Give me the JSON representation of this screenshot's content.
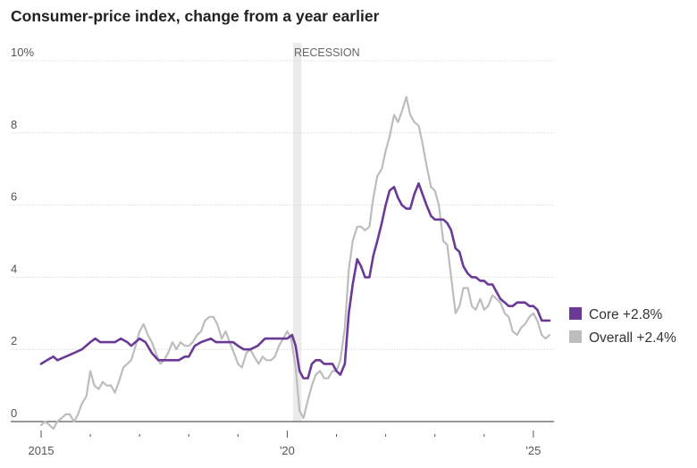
{
  "chart_data": {
    "type": "line",
    "title": "Consumer-price index, change from a year earlier",
    "xlabel": "",
    "ylabel": "",
    "xlim": [
      2015,
      2025.42
    ],
    "ylim": [
      0,
      10
    ],
    "y_ticks": [
      {
        "value": 10,
        "label": "10%"
      },
      {
        "value": 8,
        "label": "8"
      },
      {
        "value": 6,
        "label": "6"
      },
      {
        "value": 4,
        "label": "4"
      },
      {
        "value": 2,
        "label": "2"
      },
      {
        "value": 0,
        "label": "0"
      }
    ],
    "x_tick_labels": [
      {
        "value": 2015,
        "label": "2015"
      },
      {
        "value": 2020,
        "label": "'20"
      },
      {
        "value": 2025,
        "label": "'25"
      }
    ],
    "x_minor_ticks": [
      2016,
      2017,
      2018,
      2019,
      2021,
      2022,
      2023,
      2024
    ],
    "grid": true,
    "legend_position": "right",
    "annotations": [
      {
        "label": "RECESSION",
        "x_start": 2020.12,
        "x_end": 2020.29
      }
    ],
    "series": [
      {
        "name": "Core",
        "legend_label": "Core +2.8%",
        "color": "#6b3a96",
        "points": [
          [
            2015.0,
            1.6
          ],
          [
            2015.12,
            1.7
          ],
          [
            2015.25,
            1.8
          ],
          [
            2015.33,
            1.7
          ],
          [
            2015.5,
            1.8
          ],
          [
            2015.67,
            1.9
          ],
          [
            2015.83,
            2.0
          ],
          [
            2016.0,
            2.2
          ],
          [
            2016.1,
            2.3
          ],
          [
            2016.2,
            2.2
          ],
          [
            2016.33,
            2.2
          ],
          [
            2016.5,
            2.2
          ],
          [
            2016.62,
            2.3
          ],
          [
            2016.75,
            2.2
          ],
          [
            2016.83,
            2.1
          ],
          [
            2017.0,
            2.3
          ],
          [
            2017.12,
            2.2
          ],
          [
            2017.25,
            1.9
          ],
          [
            2017.38,
            1.7
          ],
          [
            2017.5,
            1.7
          ],
          [
            2017.67,
            1.7
          ],
          [
            2017.8,
            1.7
          ],
          [
            2017.92,
            1.8
          ],
          [
            2018.0,
            1.8
          ],
          [
            2018.12,
            2.1
          ],
          [
            2018.25,
            2.2
          ],
          [
            2018.45,
            2.3
          ],
          [
            2018.55,
            2.2
          ],
          [
            2018.75,
            2.2
          ],
          [
            2018.9,
            2.2
          ],
          [
            2019.0,
            2.1
          ],
          [
            2019.12,
            2.0
          ],
          [
            2019.25,
            2.0
          ],
          [
            2019.4,
            2.1
          ],
          [
            2019.55,
            2.3
          ],
          [
            2019.67,
            2.3
          ],
          [
            2019.8,
            2.3
          ],
          [
            2019.92,
            2.3
          ],
          [
            2020.0,
            2.3
          ],
          [
            2020.1,
            2.4
          ],
          [
            2020.17,
            2.1
          ],
          [
            2020.25,
            1.4
          ],
          [
            2020.33,
            1.2
          ],
          [
            2020.42,
            1.2
          ],
          [
            2020.5,
            1.6
          ],
          [
            2020.58,
            1.7
          ],
          [
            2020.67,
            1.7
          ],
          [
            2020.75,
            1.6
          ],
          [
            2020.85,
            1.6
          ],
          [
            2020.92,
            1.6
          ],
          [
            2021.0,
            1.4
          ],
          [
            2021.08,
            1.3
          ],
          [
            2021.17,
            1.6
          ],
          [
            2021.25,
            3.0
          ],
          [
            2021.33,
            3.8
          ],
          [
            2021.42,
            4.5
          ],
          [
            2021.5,
            4.3
          ],
          [
            2021.58,
            4.0
          ],
          [
            2021.67,
            4.0
          ],
          [
            2021.75,
            4.6
          ],
          [
            2021.83,
            5.0
          ],
          [
            2021.92,
            5.5
          ],
          [
            2022.0,
            6.0
          ],
          [
            2022.08,
            6.4
          ],
          [
            2022.17,
            6.5
          ],
          [
            2022.25,
            6.2
          ],
          [
            2022.33,
            6.0
          ],
          [
            2022.42,
            5.9
          ],
          [
            2022.5,
            5.9
          ],
          [
            2022.58,
            6.3
          ],
          [
            2022.67,
            6.6
          ],
          [
            2022.75,
            6.3
          ],
          [
            2022.83,
            6.0
          ],
          [
            2022.92,
            5.7
          ],
          [
            2023.0,
            5.6
          ],
          [
            2023.08,
            5.6
          ],
          [
            2023.17,
            5.6
          ],
          [
            2023.25,
            5.5
          ],
          [
            2023.33,
            5.3
          ],
          [
            2023.42,
            4.8
          ],
          [
            2023.5,
            4.7
          ],
          [
            2023.58,
            4.3
          ],
          [
            2023.67,
            4.1
          ],
          [
            2023.75,
            4.0
          ],
          [
            2023.83,
            4.0
          ],
          [
            2023.92,
            3.9
          ],
          [
            2024.0,
            3.9
          ],
          [
            2024.08,
            3.8
          ],
          [
            2024.17,
            3.8
          ],
          [
            2024.25,
            3.6
          ],
          [
            2024.33,
            3.4
          ],
          [
            2024.42,
            3.3
          ],
          [
            2024.5,
            3.2
          ],
          [
            2024.58,
            3.2
          ],
          [
            2024.67,
            3.3
          ],
          [
            2024.75,
            3.3
          ],
          [
            2024.83,
            3.3
          ],
          [
            2024.92,
            3.2
          ],
          [
            2025.0,
            3.2
          ],
          [
            2025.08,
            3.1
          ],
          [
            2025.17,
            2.8
          ],
          [
            2025.25,
            2.8
          ],
          [
            2025.33,
            2.8
          ]
        ]
      },
      {
        "name": "Overall",
        "legend_label": "Overall +2.4%",
        "color": "#bdbdbd",
        "points": [
          [
            2015.0,
            -0.1
          ],
          [
            2015.08,
            0.0
          ],
          [
            2015.17,
            -0.1
          ],
          [
            2015.25,
            -0.2
          ],
          [
            2015.33,
            0.0
          ],
          [
            2015.42,
            0.1
          ],
          [
            2015.5,
            0.2
          ],
          [
            2015.58,
            0.2
          ],
          [
            2015.67,
            0.0
          ],
          [
            2015.75,
            0.2
          ],
          [
            2015.83,
            0.5
          ],
          [
            2015.92,
            0.7
          ],
          [
            2016.0,
            1.4
          ],
          [
            2016.08,
            1.0
          ],
          [
            2016.17,
            0.9
          ],
          [
            2016.25,
            1.1
          ],
          [
            2016.33,
            1.0
          ],
          [
            2016.42,
            1.0
          ],
          [
            2016.5,
            0.8
          ],
          [
            2016.58,
            1.1
          ],
          [
            2016.67,
            1.5
          ],
          [
            2016.75,
            1.6
          ],
          [
            2016.83,
            1.7
          ],
          [
            2016.92,
            2.1
          ],
          [
            2017.0,
            2.5
          ],
          [
            2017.08,
            2.7
          ],
          [
            2017.17,
            2.4
          ],
          [
            2017.25,
            2.2
          ],
          [
            2017.33,
            1.9
          ],
          [
            2017.42,
            1.6
          ],
          [
            2017.5,
            1.7
          ],
          [
            2017.58,
            1.9
          ],
          [
            2017.67,
            2.2
          ],
          [
            2017.75,
            2.0
          ],
          [
            2017.83,
            2.2
          ],
          [
            2017.92,
            2.1
          ],
          [
            2018.0,
            2.1
          ],
          [
            2018.08,
            2.2
          ],
          [
            2018.17,
            2.4
          ],
          [
            2018.25,
            2.5
          ],
          [
            2018.33,
            2.8
          ],
          [
            2018.42,
            2.9
          ],
          [
            2018.5,
            2.9
          ],
          [
            2018.58,
            2.7
          ],
          [
            2018.67,
            2.3
          ],
          [
            2018.75,
            2.5
          ],
          [
            2018.83,
            2.2
          ],
          [
            2018.92,
            1.9
          ],
          [
            2019.0,
            1.6
          ],
          [
            2019.08,
            1.5
          ],
          [
            2019.17,
            1.9
          ],
          [
            2019.25,
            2.0
          ],
          [
            2019.33,
            1.8
          ],
          [
            2019.42,
            1.6
          ],
          [
            2019.5,
            1.8
          ],
          [
            2019.58,
            1.7
          ],
          [
            2019.67,
            1.7
          ],
          [
            2019.75,
            1.8
          ],
          [
            2019.83,
            2.1
          ],
          [
            2019.92,
            2.3
          ],
          [
            2020.0,
            2.5
          ],
          [
            2020.08,
            2.3
          ],
          [
            2020.17,
            1.5
          ],
          [
            2020.25,
            0.3
          ],
          [
            2020.33,
            0.1
          ],
          [
            2020.42,
            0.6
          ],
          [
            2020.5,
            1.0
          ],
          [
            2020.58,
            1.3
          ],
          [
            2020.67,
            1.4
          ],
          [
            2020.75,
            1.2
          ],
          [
            2020.83,
            1.2
          ],
          [
            2020.92,
            1.4
          ],
          [
            2021.0,
            1.4
          ],
          [
            2021.08,
            1.7
          ],
          [
            2021.17,
            2.6
          ],
          [
            2021.25,
            4.2
          ],
          [
            2021.33,
            5.0
          ],
          [
            2021.42,
            5.4
          ],
          [
            2021.5,
            5.4
          ],
          [
            2021.58,
            5.3
          ],
          [
            2021.67,
            5.4
          ],
          [
            2021.75,
            6.2
          ],
          [
            2021.83,
            6.8
          ],
          [
            2021.92,
            7.0
          ],
          [
            2022.0,
            7.5
          ],
          [
            2022.08,
            7.9
          ],
          [
            2022.17,
            8.5
          ],
          [
            2022.25,
            8.3
          ],
          [
            2022.33,
            8.6
          ],
          [
            2022.42,
            9.0
          ],
          [
            2022.5,
            8.5
          ],
          [
            2022.58,
            8.3
          ],
          [
            2022.67,
            8.2
          ],
          [
            2022.75,
            7.7
          ],
          [
            2022.83,
            7.1
          ],
          [
            2022.92,
            6.5
          ],
          [
            2023.0,
            6.4
          ],
          [
            2023.08,
            6.0
          ],
          [
            2023.17,
            5.0
          ],
          [
            2023.25,
            4.9
          ],
          [
            2023.33,
            4.0
          ],
          [
            2023.42,
            3.0
          ],
          [
            2023.5,
            3.2
          ],
          [
            2023.58,
            3.7
          ],
          [
            2023.67,
            3.7
          ],
          [
            2023.75,
            3.2
          ],
          [
            2023.83,
            3.1
          ],
          [
            2023.92,
            3.4
          ],
          [
            2024.0,
            3.1
          ],
          [
            2024.08,
            3.2
          ],
          [
            2024.17,
            3.5
          ],
          [
            2024.25,
            3.4
          ],
          [
            2024.33,
            3.3
          ],
          [
            2024.42,
            3.0
          ],
          [
            2024.5,
            2.9
          ],
          [
            2024.58,
            2.5
          ],
          [
            2024.67,
            2.4
          ],
          [
            2024.75,
            2.6
          ],
          [
            2024.83,
            2.7
          ],
          [
            2024.92,
            2.9
          ],
          [
            2025.0,
            3.0
          ],
          [
            2025.08,
            2.8
          ],
          [
            2025.17,
            2.4
          ],
          [
            2025.25,
            2.3
          ],
          [
            2025.33,
            2.4
          ]
        ]
      }
    ]
  }
}
